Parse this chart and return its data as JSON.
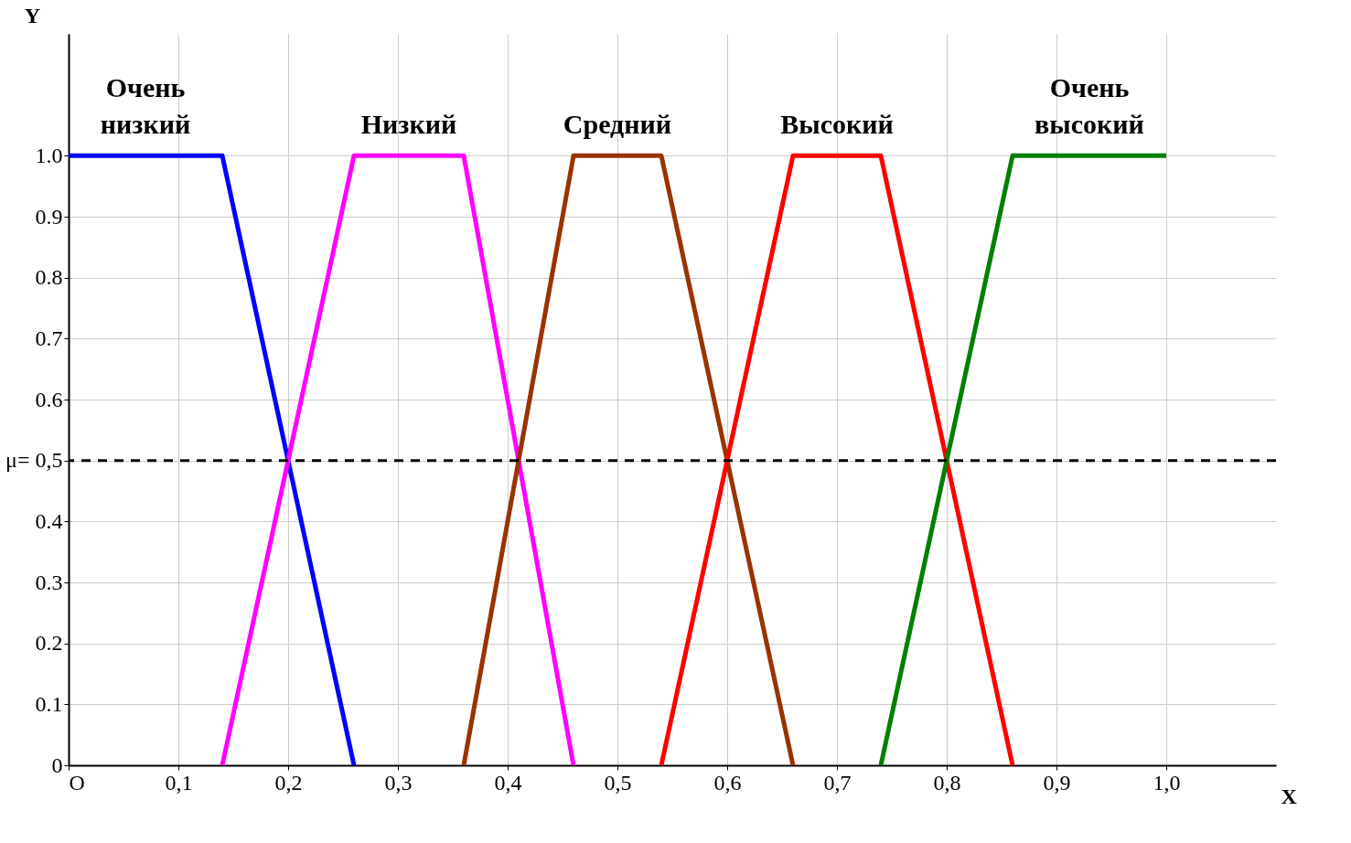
{
  "chart_data": {
    "type": "line",
    "xlabel": "X",
    "ylabel": "Y",
    "x": [
      0,
      0.14,
      0.26,
      0.36,
      0.46,
      0.54,
      0.66,
      0.74,
      0.86,
      1.0
    ],
    "series": [
      {
        "name": "Очень\nнизкий",
        "color": "#0000ff",
        "values": [
          1,
          1,
          0,
          null,
          null,
          null,
          null,
          null,
          null,
          null
        ]
      },
      {
        "name": "Низкий",
        "color": "#ff00ff",
        "values": [
          null,
          0,
          1,
          1,
          0,
          null,
          null,
          null,
          null,
          null
        ]
      },
      {
        "name": "Средний",
        "color": "#993300",
        "values": [
          null,
          null,
          null,
          0,
          1,
          1,
          0,
          null,
          null,
          null
        ]
      },
      {
        "name": "Высокий",
        "color": "#ff0000",
        "values": [
          null,
          null,
          null,
          null,
          null,
          0,
          1,
          1,
          0,
          null
        ]
      },
      {
        "name": "Очень\nвысокий",
        "color": "#008000",
        "values": [
          null,
          null,
          null,
          null,
          null,
          null,
          null,
          0,
          1,
          1
        ]
      }
    ],
    "xlim": [
      0,
      1.1
    ],
    "ylim": [
      0,
      1.2
    ],
    "xticks": [
      {
        "value": 0,
        "label": "O"
      },
      {
        "value": 0.1,
        "label": "0,1"
      },
      {
        "value": 0.2,
        "label": "0,2"
      },
      {
        "value": 0.3,
        "label": "0,3"
      },
      {
        "value": 0.4,
        "label": "0,4"
      },
      {
        "value": 0.5,
        "label": "0,5"
      },
      {
        "value": 0.6,
        "label": "0,6"
      },
      {
        "value": 0.7,
        "label": "0,7"
      },
      {
        "value": 0.8,
        "label": "0,8"
      },
      {
        "value": 0.9,
        "label": "0,9"
      },
      {
        "value": 1.0,
        "label": "1,0"
      }
    ],
    "yticks": [
      0,
      0.1,
      0.2,
      0.3,
      0.4,
      {
        "value": 0.5,
        "label": "μ= 0,5"
      },
      0.6,
      0.7,
      0.8,
      0.9,
      {
        "value": 1.0,
        "label": "1.0"
      }
    ],
    "ref_lines": [
      {
        "axis": "y",
        "value": 0.5,
        "color": "#000000",
        "line_style": "dashed"
      }
    ],
    "grid": true,
    "legend": false,
    "marker": "none",
    "line_style": "solid"
  }
}
